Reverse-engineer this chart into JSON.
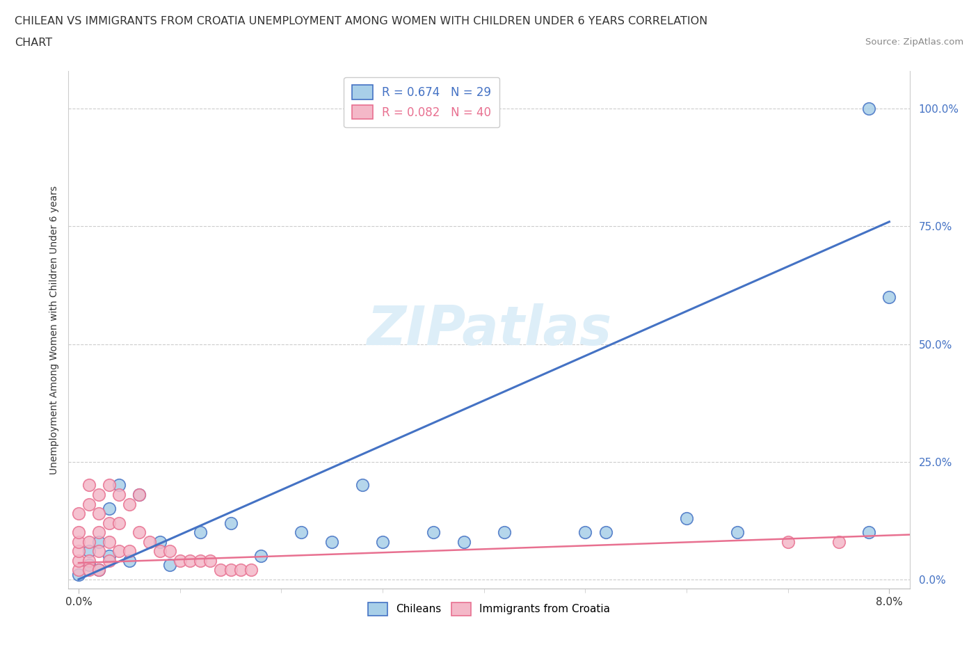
{
  "title_line1": "CHILEAN VS IMMIGRANTS FROM CROATIA UNEMPLOYMENT AMONG WOMEN WITH CHILDREN UNDER 6 YEARS CORRELATION",
  "title_line2": "CHART",
  "source": "Source: ZipAtlas.com",
  "ylabel": "Unemployment Among Women with Children Under 6 years",
  "xlim": [
    -0.001,
    0.082
  ],
  "ylim": [
    -0.02,
    1.08
  ],
  "ytick_vals": [
    0.0,
    0.25,
    0.5,
    0.75,
    1.0
  ],
  "ytick_labels": [
    "0.0%",
    "25.0%",
    "50.0%",
    "75.0%",
    "100.0%"
  ],
  "xtick_vals": [
    0.0,
    0.08
  ],
  "xtick_labels": [
    "0.0%",
    "8.0%"
  ],
  "legend_r_blue": "0.674",
  "legend_n_blue": "29",
  "legend_r_pink": "0.082",
  "legend_n_pink": "40",
  "blue_scatter_color": "#a8cfe8",
  "pink_scatter_color": "#f4b8c8",
  "blue_line_color": "#4472c4",
  "pink_line_color": "#e87090",
  "watermark_color": "#ddeef8",
  "blue_line_x": [
    0.0,
    0.08
  ],
  "blue_line_y": [
    0.0,
    0.76
  ],
  "pink_line_x": [
    0.0,
    0.082
  ],
  "pink_line_y": [
    0.035,
    0.095
  ],
  "chileans_x": [
    0.0,
    0.001,
    0.001,
    0.002,
    0.002,
    0.003,
    0.003,
    0.004,
    0.005,
    0.006,
    0.008,
    0.009,
    0.012,
    0.015,
    0.018,
    0.022,
    0.025,
    0.028,
    0.03,
    0.035,
    0.038,
    0.042,
    0.05,
    0.052,
    0.06,
    0.065,
    0.078,
    0.08,
    0.078
  ],
  "chileans_y": [
    0.01,
    0.03,
    0.06,
    0.08,
    0.02,
    0.15,
    0.05,
    0.2,
    0.04,
    0.18,
    0.08,
    0.03,
    0.1,
    0.12,
    0.05,
    0.1,
    0.08,
    0.2,
    0.08,
    0.1,
    0.08,
    0.1,
    0.1,
    0.1,
    0.13,
    0.1,
    0.1,
    0.6,
    1.0
  ],
  "immigrants_x": [
    0.0,
    0.0,
    0.0,
    0.0,
    0.0,
    0.0,
    0.001,
    0.001,
    0.001,
    0.001,
    0.001,
    0.002,
    0.002,
    0.002,
    0.002,
    0.002,
    0.003,
    0.003,
    0.003,
    0.003,
    0.004,
    0.004,
    0.004,
    0.005,
    0.005,
    0.006,
    0.006,
    0.007,
    0.008,
    0.009,
    0.01,
    0.011,
    0.012,
    0.013,
    0.014,
    0.015,
    0.016,
    0.017,
    0.07,
    0.075
  ],
  "immigrants_y": [
    0.02,
    0.04,
    0.06,
    0.08,
    0.1,
    0.14,
    0.16,
    0.2,
    0.08,
    0.04,
    0.02,
    0.18,
    0.14,
    0.1,
    0.06,
    0.02,
    0.2,
    0.12,
    0.08,
    0.04,
    0.18,
    0.12,
    0.06,
    0.16,
    0.06,
    0.18,
    0.1,
    0.08,
    0.06,
    0.06,
    0.04,
    0.04,
    0.04,
    0.04,
    0.02,
    0.02,
    0.02,
    0.02,
    0.08,
    0.08
  ]
}
